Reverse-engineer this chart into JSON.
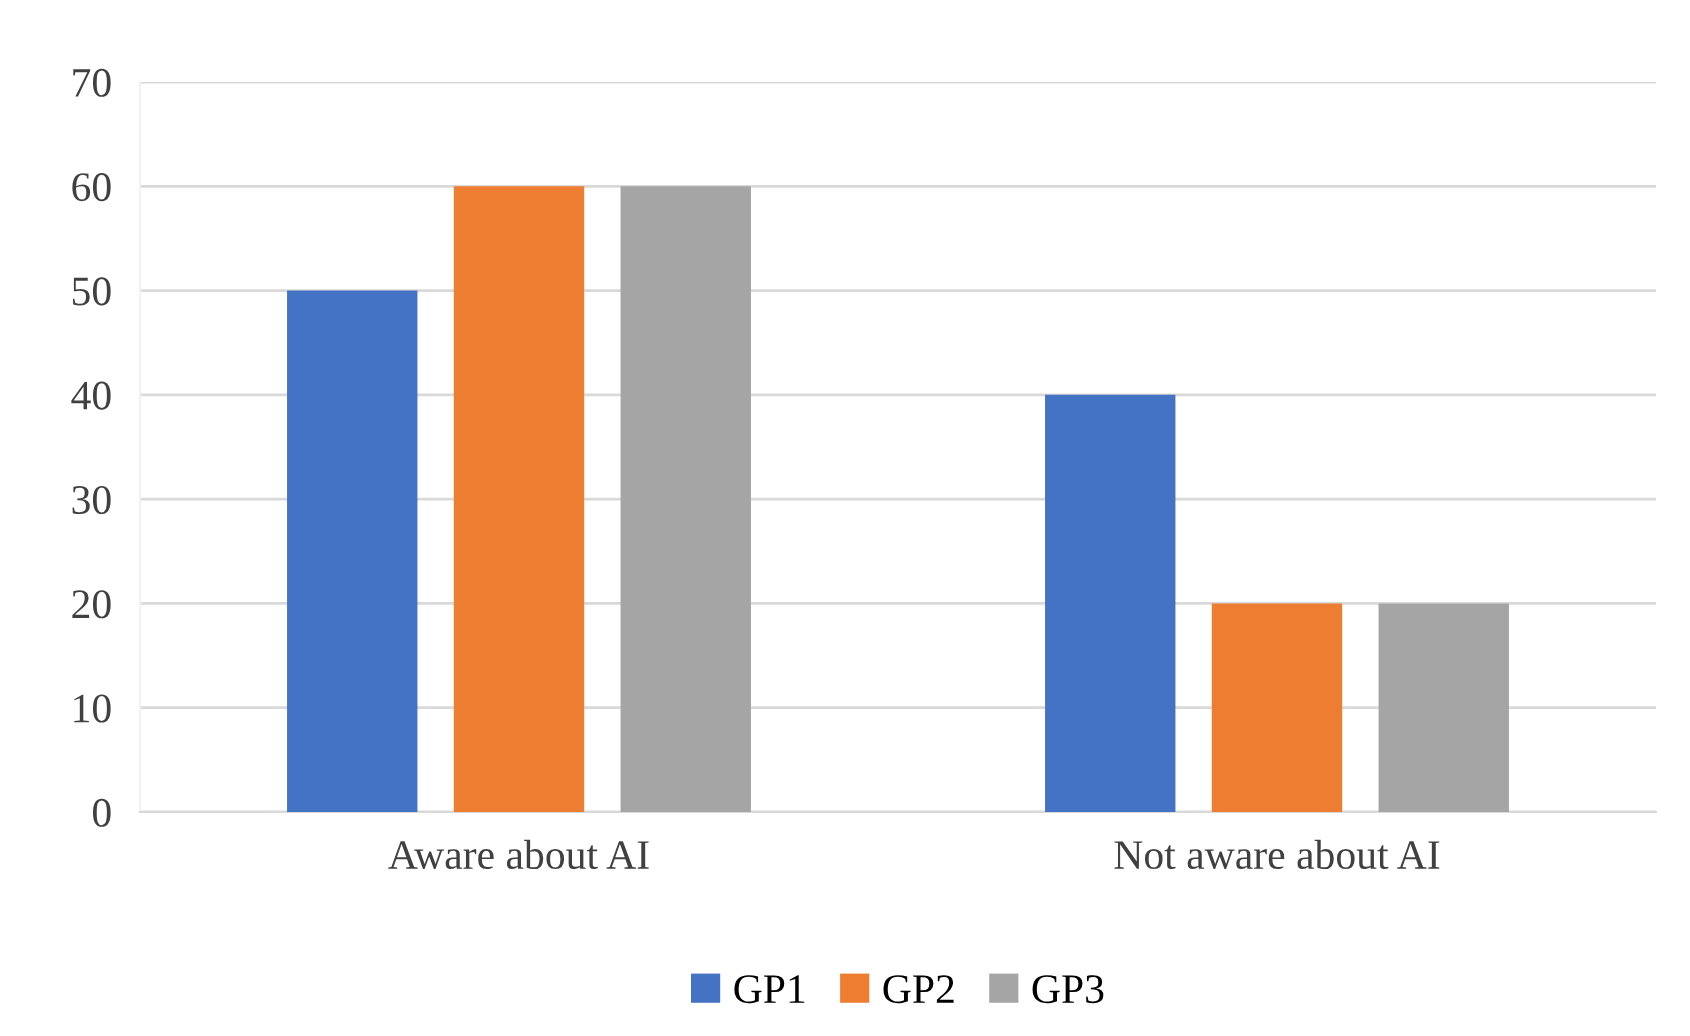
{
  "chart_data": {
    "type": "bar",
    "categories": [
      "Aware about AI",
      "Not aware about AI"
    ],
    "series": [
      {
        "name": "GP1",
        "color": "#4472c4",
        "values": [
          50,
          40
        ]
      },
      {
        "name": "GP2",
        "color": "#ed7d31",
        "values": [
          60,
          20
        ]
      },
      {
        "name": "GP3",
        "color": "#a5a5a5",
        "values": [
          60,
          20
        ]
      }
    ],
    "ylim": [
      0,
      70
    ],
    "yticks": [
      0,
      10,
      20,
      30,
      40,
      50,
      60,
      70
    ],
    "grid": "y",
    "legend": "bottom"
  }
}
